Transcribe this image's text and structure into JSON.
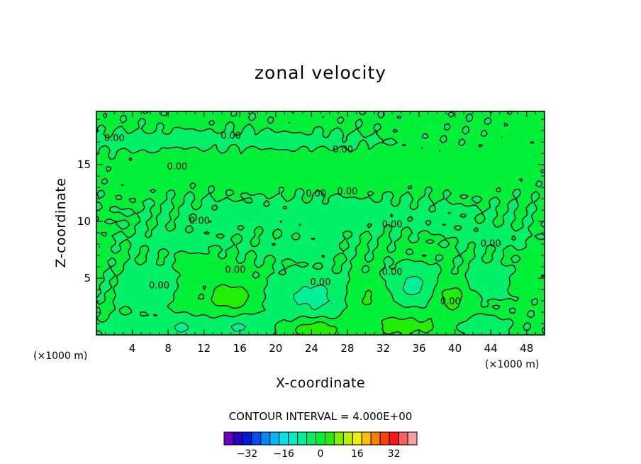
{
  "chart_data": {
    "type": "heatmap",
    "title": "zonal velocity",
    "xlabel": "X-coordinate",
    "ylabel": "Z-coordinate",
    "x_unit": "(×1000 m)",
    "z_unit": "(×1000 m)",
    "xlim": [
      0,
      50
    ],
    "ylim": [
      0,
      19.7
    ],
    "x_ticks": [
      4,
      8,
      12,
      16,
      20,
      24,
      28,
      32,
      36,
      40,
      44,
      48
    ],
    "y_ticks": [
      5,
      10,
      15
    ],
    "contour_interval_text": "CONTOUR INTERVAL = 4.000E+00",
    "contour_label": "0.00",
    "colorbar": {
      "levels": [
        -40,
        -36,
        -32,
        -28,
        -24,
        -20,
        -16,
        -12,
        -8,
        -4,
        0,
        4,
        8,
        12,
        16,
        20,
        24,
        28,
        32,
        36,
        40
      ],
      "colors": [
        "#6a00c8",
        "#2a00c0",
        "#0018d8",
        "#0050f0",
        "#0088f8",
        "#00b8f8",
        "#00e0f0",
        "#00f0c8",
        "#00f098",
        "#00f068",
        "#00f038",
        "#20f000",
        "#80f000",
        "#c0f000",
        "#f0f000",
        "#f8c000",
        "#f88000",
        "#f84000",
        "#f81818",
        "#f86060",
        "#f8a0a0"
      ],
      "tick_labels": [
        "-32",
        "-16",
        "0",
        "16",
        "32"
      ]
    },
    "field": {
      "background_value": 0.5,
      "contour_labels": [
        {
          "x": 2.0,
          "z": 17.3
        },
        {
          "x": 15.0,
          "z": 17.5
        },
        {
          "x": 27.5,
          "z": 16.3
        },
        {
          "x": 9.0,
          "z": 14.8
        },
        {
          "x": 24.5,
          "z": 12.4
        },
        {
          "x": 28.0,
          "z": 12.6
        },
        {
          "x": 11.5,
          "z": 10.0
        },
        {
          "x": 33.0,
          "z": 9.7
        },
        {
          "x": 44.0,
          "z": 8.0
        },
        {
          "x": 15.5,
          "z": 5.7
        },
        {
          "x": 33.0,
          "z": 5.5
        },
        {
          "x": 7.0,
          "z": 4.3
        },
        {
          "x": 25.0,
          "z": 4.6
        },
        {
          "x": 39.5,
          "z": 2.9
        }
      ],
      "features": [
        {
          "x": 27,
          "z": 14.7,
          "rx": 17,
          "rz": 1.5,
          "value": 1.5
        },
        {
          "x": 3,
          "z": 17.0,
          "rx": 5,
          "rz": 0.8,
          "value": -1.5
        },
        {
          "x": 13,
          "z": 17.2,
          "rx": 8,
          "rz": 0.8,
          "value": -1.5
        },
        {
          "x": 25,
          "z": 17.0,
          "rx": 8,
          "rz": 0.8,
          "value": -1.5
        },
        {
          "x": 25,
          "z": 10.5,
          "rx": 20,
          "rz": 1.8,
          "value": -1.5
        },
        {
          "x": 8,
          "z": 8.2,
          "rx": 5,
          "rz": 0.9,
          "value": -1.5
        },
        {
          "x": 22,
          "z": 7.5,
          "rx": 6,
          "rz": 0.9,
          "value": -1.5
        },
        {
          "x": 44,
          "z": 8.5,
          "rx": 4,
          "rz": 0.9,
          "value": -1.5
        },
        {
          "x": 6.5,
          "z": 4.2,
          "rx": 3.5,
          "rz": 1.7,
          "value": -5
        },
        {
          "x": 11,
          "z": 3.8,
          "rx": 4,
          "rz": 1.8,
          "value": 3.5
        },
        {
          "x": 15.5,
          "z": 3.3,
          "rx": 2.2,
          "rz": 1.1,
          "value": 6
        },
        {
          "x": 24.5,
          "z": 3.3,
          "rx": 4.5,
          "rz": 1.8,
          "value": -6
        },
        {
          "x": 30,
          "z": 3.3,
          "rx": 2.6,
          "rz": 1.4,
          "value": 5
        },
        {
          "x": 35.5,
          "z": 4.3,
          "rx": 2.7,
          "rz": 1.5,
          "value": -6
        },
        {
          "x": 39.5,
          "z": 3.5,
          "rx": 2.1,
          "rz": 1.5,
          "value": 6
        },
        {
          "x": 43.5,
          "z": 4.8,
          "rx": 3.5,
          "rz": 1.6,
          "value": -2.5
        },
        {
          "x": 47.5,
          "z": 4.6,
          "rx": 1.4,
          "rz": 0.9,
          "value": 3
        },
        {
          "x": 9.5,
          "z": 0.7,
          "rx": 2.4,
          "rz": 1.0,
          "value": -5
        },
        {
          "x": 15.5,
          "z": 0.6,
          "rx": 3.2,
          "rz": 1.0,
          "value": -5
        },
        {
          "x": 24.5,
          "z": 0.5,
          "rx": 2.7,
          "rz": 0.9,
          "value": 7
        },
        {
          "x": 34.5,
          "z": 0.8,
          "rx": 5,
          "rz": 1.2,
          "value": 5
        },
        {
          "x": 42.5,
          "z": 0.7,
          "rx": 2.5,
          "rz": 0.9,
          "value": -3.5
        },
        {
          "x": 3,
          "z": 0.6,
          "rx": 2.5,
          "rz": 0.8,
          "value": -4
        }
      ]
    }
  }
}
